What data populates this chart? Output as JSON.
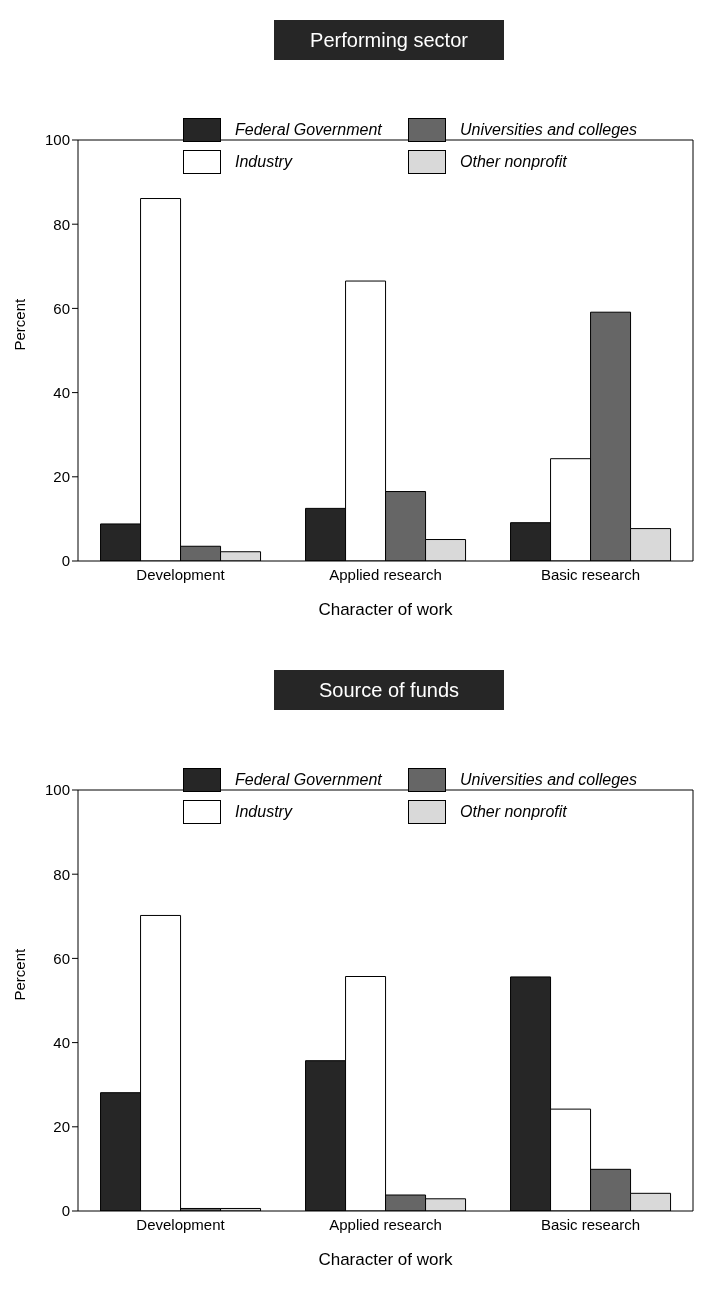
{
  "chart_data": [
    {
      "type": "bar",
      "title": "Performing sector",
      "xlabel": "Character of work",
      "ylabel": "Percent",
      "categories": [
        "Development",
        "Applied research",
        "Basic research"
      ],
      "series": [
        {
          "name": "Federal Government",
          "color": "#262626",
          "values": [
            8.8,
            12.5,
            9.1
          ]
        },
        {
          "name": "Industry",
          "color": "#ffffff",
          "values": [
            86.1,
            66.5,
            24.3
          ]
        },
        {
          "name": "Universities and colleges",
          "color": "#666666",
          "values": [
            3.5,
            16.5,
            59.1
          ]
        },
        {
          "name": "Other nonprofit",
          "color": "#d9d9d9",
          "values": [
            2.2,
            5.1,
            7.7
          ]
        }
      ],
      "ylim": [
        0,
        100
      ],
      "yticks": [
        0,
        20,
        40,
        60,
        80,
        100
      ],
      "legend": "top"
    },
    {
      "type": "bar",
      "title": "Source of funds",
      "xlabel": "Character of work",
      "ylabel": "Percent",
      "categories": [
        "Development",
        "Applied research",
        "Basic research"
      ],
      "series": [
        {
          "name": "Federal Government",
          "color": "#262626",
          "values": [
            28.1,
            35.7,
            55.6
          ]
        },
        {
          "name": "Industry",
          "color": "#ffffff",
          "values": [
            70.2,
            55.7,
            24.2
          ]
        },
        {
          "name": "Universities and colleges",
          "color": "#666666",
          "values": [
            0.6,
            3.8,
            9.9
          ]
        },
        {
          "name": "Other nonprofit",
          "color": "#d9d9d9",
          "values": [
            0.6,
            2.9,
            4.2
          ]
        }
      ],
      "ylim": [
        0,
        100
      ],
      "yticks": [
        0,
        20,
        40,
        60,
        80,
        100
      ],
      "legend": "top"
    }
  ]
}
